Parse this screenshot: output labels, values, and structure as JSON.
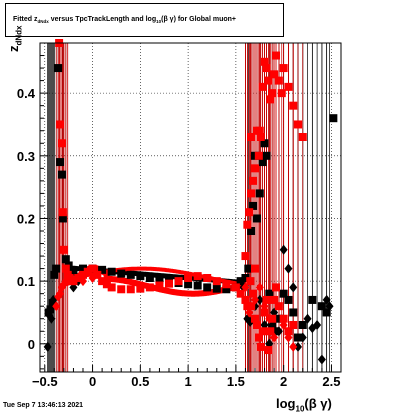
{
  "title": {
    "pre": "Fitted  z",
    "sub": "dNdx",
    "mid": " versus TpcTrackLength and log",
    "sub2": "10",
    "post": "(β γ) for Global muon+"
  },
  "ylabel": {
    "main": "z",
    "sub": "dNdx"
  },
  "xlabel": {
    "main": "log",
    "sub": "10",
    "post": "(β γ)"
  },
  "footer": "Tue Sep  7 13:46:13 2021",
  "colors": {
    "series_black": "#000000",
    "series_red": "#ff0000",
    "errorbar_red": "#cc0000"
  },
  "chart_data": {
    "type": "scatter",
    "xlim": [
      -0.55,
      2.6
    ],
    "ylim": [
      -0.045,
      0.48
    ],
    "x_ticks": [
      "−0.5",
      "0",
      "0.5",
      "1",
      "1.5",
      "2",
      "2.5"
    ],
    "x_tick_values": [
      -0.5,
      0,
      0.5,
      1,
      1.5,
      2,
      2.5
    ],
    "y_ticks": [
      "0",
      "0.1",
      "0.2",
      "0.3",
      "0.4"
    ],
    "y_tick_values": [
      0,
      0.1,
      0.2,
      0.3,
      0.4
    ],
    "grid": true,
    "series": [
      {
        "color": "black",
        "marker": "square",
        "points": [
          [
            -0.46,
            0.05
          ],
          [
            -0.44,
            0.055
          ],
          [
            -0.42,
            0.065
          ],
          [
            -0.4,
            0.11
          ],
          [
            -0.38,
            0.12
          ],
          [
            -0.36,
            0.44
          ],
          [
            -0.34,
            0.29
          ],
          [
            -0.32,
            0.27
          ],
          [
            -0.31,
            0.2
          ],
          [
            -0.28,
            0.135
          ],
          [
            -0.25,
            0.125
          ],
          [
            -0.2,
            0.115
          ],
          [
            -0.1,
            0.12
          ],
          [
            0,
            0.12
          ],
          [
            0.1,
            0.118
          ],
          [
            0.2,
            0.115
          ],
          [
            0.3,
            0.112
          ],
          [
            0.4,
            0.11
          ],
          [
            0.5,
            0.108
          ],
          [
            0.6,
            0.105
          ],
          [
            0.7,
            0.102
          ],
          [
            0.8,
            0.1
          ],
          [
            0.9,
            0.097
          ],
          [
            1.0,
            0.095
          ],
          [
            1.1,
            0.093
          ],
          [
            1.2,
            0.09
          ],
          [
            1.3,
            0.088
          ],
          [
            1.4,
            0.087
          ],
          [
            1.5,
            0.09
          ],
          [
            1.55,
            0.1
          ],
          [
            1.6,
            0.105
          ],
          [
            1.63,
            0.12
          ],
          [
            1.66,
            0.18
          ],
          [
            1.68,
            0.22
          ],
          [
            1.7,
            0.3
          ],
          [
            1.72,
            0.2
          ],
          [
            1.75,
            0.24
          ],
          [
            1.78,
            0.29
          ],
          [
            1.8,
            0.32
          ],
          [
            1.82,
            0.3
          ],
          [
            1.85,
            0.08
          ],
          [
            1.88,
            0.03
          ],
          [
            1.9,
            0.02
          ],
          [
            1.95,
            0.04
          ],
          [
            2.0,
            0.08
          ],
          [
            2.05,
            0.07
          ],
          [
            2.1,
            0.05
          ],
          [
            2.15,
            0.01
          ],
          [
            2.2,
            0.03
          ],
          [
            2.3,
            0.07
          ],
          [
            2.4,
            0.06
          ],
          [
            2.45,
            0.05
          ],
          [
            2.52,
            0.36
          ]
        ]
      },
      {
        "color": "black",
        "marker": "diamond",
        "points": [
          [
            -0.47,
            -0.005
          ],
          [
            -0.45,
            0.045
          ],
          [
            -0.43,
            0.04
          ],
          [
            -0.41,
            0.07
          ],
          [
            -0.2,
            0.09
          ],
          [
            -0.15,
            0.1
          ],
          [
            1.58,
            0.09
          ],
          [
            1.62,
            0.04
          ],
          [
            1.65,
            0.035
          ],
          [
            1.7,
            0.06
          ],
          [
            1.75,
            0.07
          ],
          [
            1.8,
            0.03
          ],
          [
            1.85,
            0.0
          ],
          [
            1.9,
            0.05
          ],
          [
            1.95,
            0.02
          ],
          [
            2.0,
            0.15
          ],
          [
            2.05,
            0.12
          ],
          [
            2.1,
            0.09
          ],
          [
            2.15,
            -0.005
          ],
          [
            2.2,
            0.01
          ],
          [
            2.25,
            0.04
          ],
          [
            2.3,
            0.025
          ],
          [
            2.35,
            0.03
          ],
          [
            2.4,
            -0.025
          ],
          [
            2.45,
            0.07
          ],
          [
            2.48,
            0.06
          ]
        ]
      },
      {
        "color": "red",
        "marker": "square",
        "points": [
          [
            -0.35,
            0.48
          ],
          [
            -0.34,
            0.35
          ],
          [
            -0.32,
            0.32
          ],
          [
            -0.31,
            0.21
          ],
          [
            -0.3,
            0.15
          ],
          [
            -0.28,
            0.12
          ],
          [
            -0.26,
            0.11
          ],
          [
            -0.24,
            0.105
          ],
          [
            -0.22,
            0.1
          ],
          [
            -0.2,
            0.1
          ],
          [
            -0.15,
            0.105
          ],
          [
            -0.1,
            0.11
          ],
          [
            -0.05,
            0.115
          ],
          [
            0,
            0.12
          ],
          [
            0.05,
            0.11
          ],
          [
            0.1,
            0.1
          ],
          [
            0.15,
            0.095
          ],
          [
            0.2,
            0.09
          ],
          [
            0.3,
            0.087
          ],
          [
            0.4,
            0.087
          ],
          [
            0.5,
            0.088
          ],
          [
            0.6,
            0.09
          ],
          [
            0.7,
            0.093
          ],
          [
            0.8,
            0.096
          ],
          [
            0.9,
            0.1
          ],
          [
            1.0,
            0.105
          ],
          [
            1.1,
            0.108
          ],
          [
            1.2,
            0.105
          ],
          [
            1.3,
            0.1
          ],
          [
            1.4,
            0.095
          ],
          [
            1.5,
            0.09
          ],
          [
            1.55,
            0.08
          ],
          [
            1.6,
            0.07
          ],
          [
            1.62,
            0.06
          ],
          [
            1.65,
            0.1
          ],
          [
            1.66,
            0.06
          ],
          [
            1.68,
            0.08
          ],
          [
            1.7,
            0.04
          ],
          [
            1.72,
            0.03
          ],
          [
            1.74,
            0.01
          ],
          [
            1.76,
            -0.005
          ],
          [
            1.78,
            0.02
          ],
          [
            1.8,
            0.05
          ],
          [
            1.82,
            0.07
          ],
          [
            1.84,
            -0.01
          ],
          [
            1.86,
            0.02
          ],
          [
            1.88,
            0.04
          ],
          [
            1.9,
            0.07
          ],
          [
            1.92,
            0.09
          ],
          [
            1.95,
            0.06
          ],
          [
            2.0,
            0.04
          ],
          [
            2.05,
            0.02
          ],
          [
            2.1,
            0.03
          ],
          [
            1.6,
            0.14
          ],
          [
            1.62,
            0.19
          ],
          [
            1.64,
            0.21
          ],
          [
            1.66,
            0.24
          ],
          [
            1.68,
            0.26
          ],
          [
            1.7,
            0.28
          ],
          [
            1.72,
            0.34
          ],
          [
            1.74,
            0.3
          ],
          [
            1.76,
            0.33
          ],
          [
            1.78,
            0.41
          ],
          [
            1.8,
            0.45
          ],
          [
            1.82,
            0.44
          ],
          [
            1.84,
            0.42
          ],
          [
            1.86,
            0.39
          ],
          [
            1.88,
            0.4
          ],
          [
            1.9,
            0.43
          ],
          [
            1.92,
            0.46
          ],
          [
            1.95,
            0.42
          ],
          [
            1.98,
            0.4
          ],
          [
            2.0,
            0.44
          ],
          [
            2.05,
            0.41
          ],
          [
            2.1,
            0.38
          ],
          [
            2.15,
            0.35
          ],
          [
            2.2,
            0.33
          ],
          [
            1.66,
            0.33
          ],
          [
            1.7,
            0.12
          ],
          [
            1.75,
            0.34
          ]
        ]
      },
      {
        "color": "red",
        "marker": "diamond",
        "points": [
          [
            -0.38,
            0.06
          ],
          [
            -0.36,
            0.075
          ],
          [
            -0.34,
            0.08
          ],
          [
            -0.32,
            0.09
          ],
          [
            -0.3,
            0.095
          ],
          [
            -0.28,
            0.1
          ],
          [
            -0.26,
            0.1
          ],
          [
            -0.1,
            0.1
          ],
          [
            0,
            0.105
          ],
          [
            1.6,
            0.09
          ],
          [
            1.64,
            0.05
          ],
          [
            1.7,
            0.07
          ],
          [
            1.75,
            0.09
          ],
          [
            1.8,
            0.06
          ],
          [
            1.85,
            0.04
          ],
          [
            1.9,
            0.01
          ],
          [
            2.0,
            0.03
          ],
          [
            2.05,
            0.01
          ],
          [
            2.1,
            -0.005
          ]
        ]
      }
    ]
  }
}
